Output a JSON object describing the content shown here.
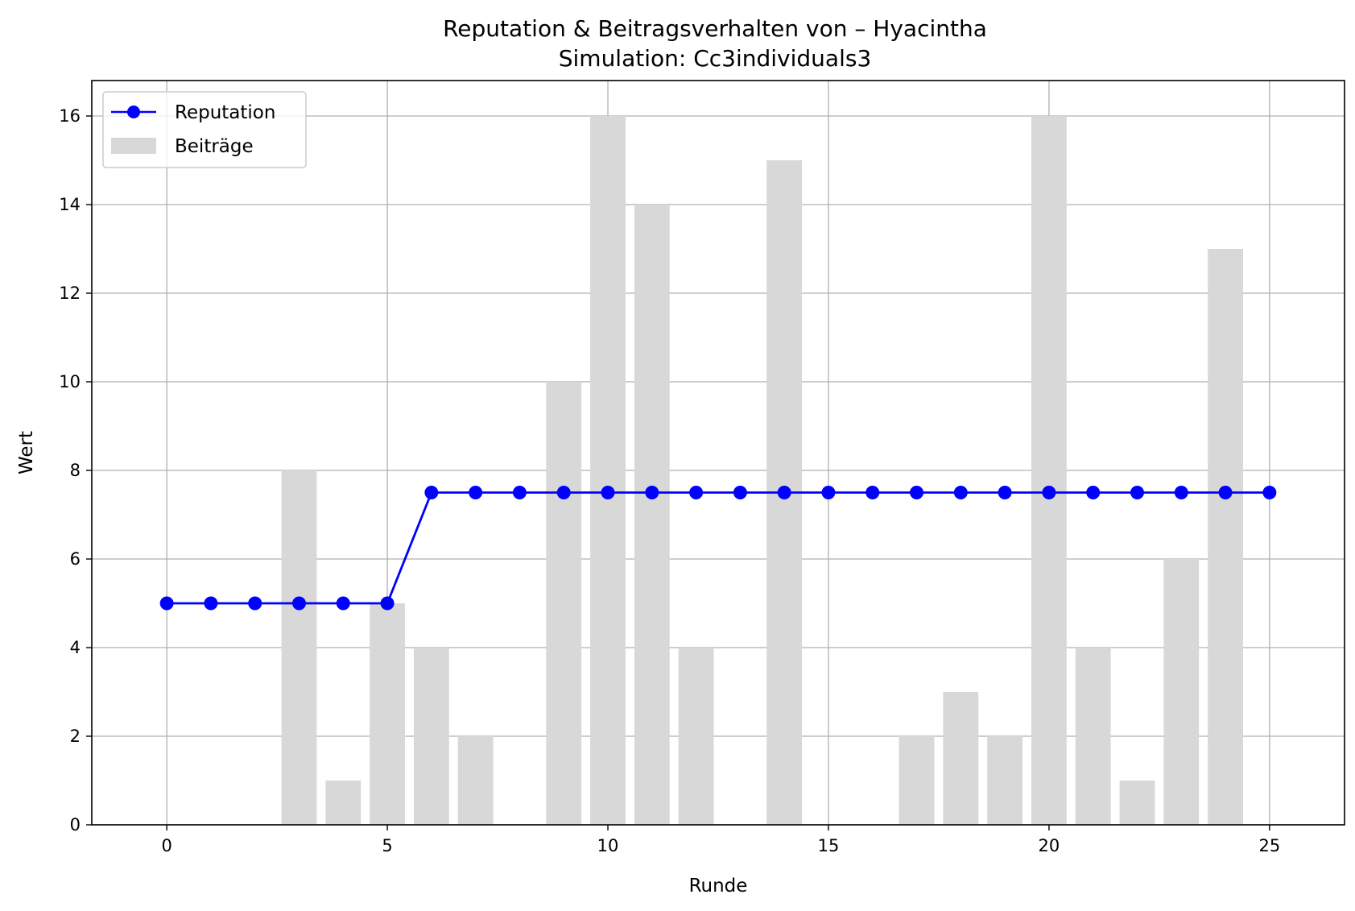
{
  "chart_data": {
    "type": "bar+line",
    "title": "Reputation & Beitragsverhalten von – Hyacintha",
    "subtitle": "Simulation: Cc3individuals3",
    "xlabel": "Runde",
    "ylabel": "Wert",
    "xlim": [
      -1.7,
      26.7
    ],
    "ylim": [
      0,
      16.8
    ],
    "x_ticks": [
      0,
      5,
      10,
      15,
      20,
      25
    ],
    "y_ticks": [
      0,
      2,
      4,
      6,
      8,
      10,
      12,
      14,
      16
    ],
    "grid": true,
    "legend_position": "top-left",
    "x": [
      0,
      1,
      2,
      3,
      4,
      5,
      6,
      7,
      8,
      9,
      10,
      11,
      12,
      13,
      14,
      15,
      16,
      17,
      18,
      19,
      20,
      21,
      22,
      23,
      24,
      25
    ],
    "series": [
      {
        "name": "Reputation",
        "type": "line",
        "color": "#0000ff",
        "values": [
          5,
          5,
          5,
          5,
          5,
          5,
          7.5,
          7.5,
          7.5,
          7.5,
          7.5,
          7.5,
          7.5,
          7.5,
          7.5,
          7.5,
          7.5,
          7.5,
          7.5,
          7.5,
          7.5,
          7.5,
          7.5,
          7.5,
          7.5,
          7.5
        ]
      },
      {
        "name": "Beiträge",
        "type": "bar",
        "color": "#d8d8d8",
        "values": [
          0,
          0,
          0,
          8,
          1,
          5,
          4,
          2,
          0,
          10,
          16,
          14,
          4,
          0,
          15,
          0,
          0,
          2,
          3,
          2,
          16,
          4,
          1,
          6,
          13,
          0
        ]
      }
    ]
  }
}
